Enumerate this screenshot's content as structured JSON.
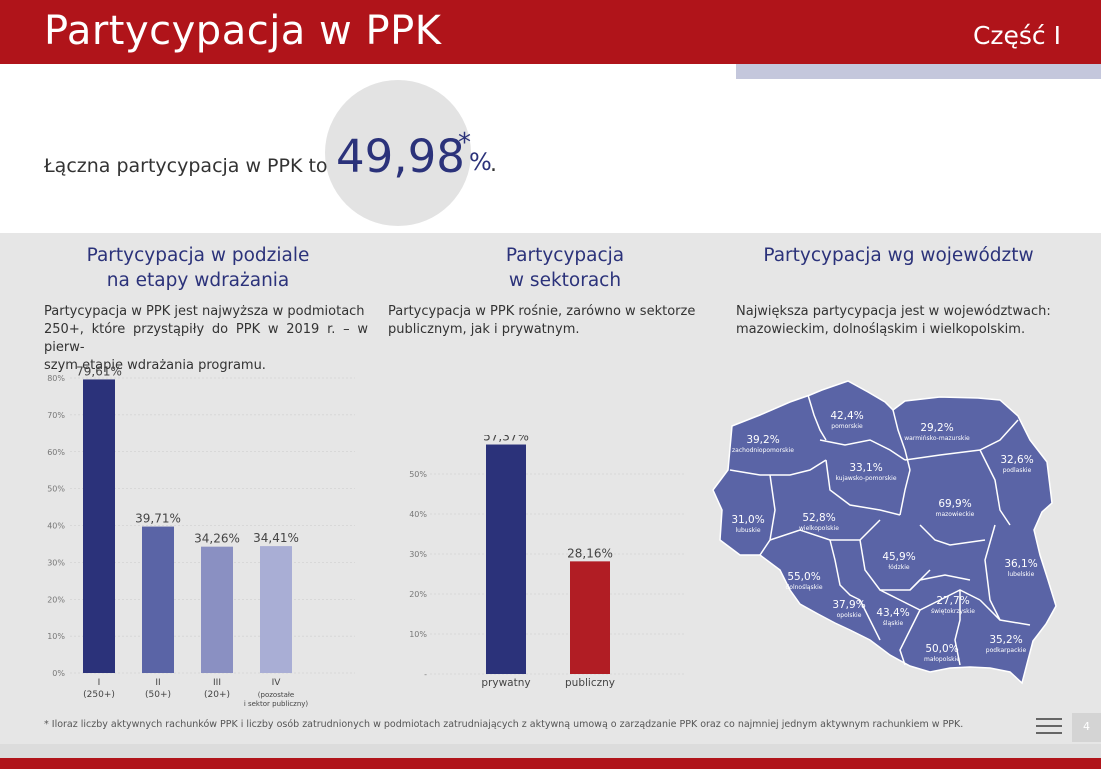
{
  "header": {
    "title": "Partycypacja w PPK",
    "part": "Część I"
  },
  "hero": {
    "text": "Łączna partycypacja w PPK to",
    "value": "49,98",
    "star": "*",
    "pct": "%",
    "dot": "."
  },
  "columns": {
    "stages": {
      "title_line1": "Partycypacja w podziale",
      "title_line2": "na etapy wdrażania",
      "desc": [
        "Partycypacja w PPK jest najwyższa w podmiotach",
        "250+, które przystąpiły do PPK w 2019 r. – w pierw-",
        "szym etapie wdrażania programu."
      ]
    },
    "sectors": {
      "title_line1": "Partycypacja",
      "title_line2": "w sektorach",
      "desc": [
        "Partycypacja w PPK rośnie, zarówno w sektorze",
        "publicznym, jak i prywatnym."
      ]
    },
    "regions": {
      "title": "Partycypacja wg województw",
      "desc": [
        "Największa partycypacja jest w województwach:",
        "mazowieckim, dolnośląskim i wielkopolskim."
      ]
    }
  },
  "chart_data": [
    {
      "type": "bar",
      "title": "Partycypacja w podziale na etapy wdrażania",
      "categories": [
        "I",
        "II",
        "III",
        "IV"
      ],
      "sublabels": [
        [
          "(250+)"
        ],
        [
          "(50+)"
        ],
        [
          "(20+)"
        ],
        [
          "(pozostałe",
          "i sektor publiczny)"
        ]
      ],
      "values": [
        79.61,
        39.71,
        34.26,
        34.41
      ],
      "value_labels": [
        "79,61%",
        "39,71%",
        "34,26%",
        "34,41%"
      ],
      "colors": [
        "#2b327a",
        "#5a64a6",
        "#8a90c2",
        "#a9aed5"
      ],
      "ylim": [
        0,
        80
      ],
      "yticks": [
        0,
        10,
        20,
        30,
        40,
        50,
        60,
        70,
        80
      ],
      "ytick_labels": [
        "0%",
        "10%",
        "20%",
        "30%",
        "40%",
        "50%",
        "60%",
        "70%",
        "80%"
      ],
      "grid": true
    },
    {
      "type": "bar",
      "title": "Partycypacja w sektorach",
      "categories": [
        "prywatny",
        "publiczny"
      ],
      "values": [
        57.37,
        28.16
      ],
      "value_labels": [
        "57,37%",
        "28,16%"
      ],
      "colors": [
        "#2b327a",
        "#b11d24"
      ],
      "ylim": [
        0,
        60
      ],
      "yticks": [
        0,
        10,
        20,
        30,
        40,
        50
      ],
      "ytick_labels": [
        "-",
        "10%",
        "20%",
        "30%",
        "40%",
        "50%"
      ],
      "grid": true
    },
    {
      "type": "map",
      "title": "Partycypacja wg województw",
      "regions": [
        {
          "name": "pomorskie",
          "value": "42,4%"
        },
        {
          "name": "warmińsko-mazurskie",
          "value": "29,2%"
        },
        {
          "name": "zachodniopomorskie",
          "value": "39,2%"
        },
        {
          "name": "podlaskie",
          "value": "32,6%"
        },
        {
          "name": "kujawsko-pomorskie",
          "value": "33,1%"
        },
        {
          "name": "mazowieckie",
          "value": "69,9%"
        },
        {
          "name": "lubuskie",
          "value": "31,0%"
        },
        {
          "name": "wielkopolskie",
          "value": "52,8%"
        },
        {
          "name": "łódzkie",
          "value": "45,9%"
        },
        {
          "name": "lubelskie",
          "value": "36,1%"
        },
        {
          "name": "dolnośląskie",
          "value": "55,0%"
        },
        {
          "name": "opolskie",
          "value": "37,9%"
        },
        {
          "name": "śląskie",
          "value": "43,4%"
        },
        {
          "name": "świętokrzyskie",
          "value": "27,7%"
        },
        {
          "name": "małopolskie",
          "value": "50,0%"
        },
        {
          "name": "podkarpackie",
          "value": "35,2%"
        }
      ],
      "fill_color": "#5a64a6"
    }
  ],
  "footnote": "* Iloraz liczby aktywnych rachunków PPK i liczby osób zatrudnionych w podmiotach zatrudniających z aktywną umową o zarządzanie PPK oraz co najmniej jednym aktywnym rachunkiem w PPK.",
  "page_number": "4"
}
